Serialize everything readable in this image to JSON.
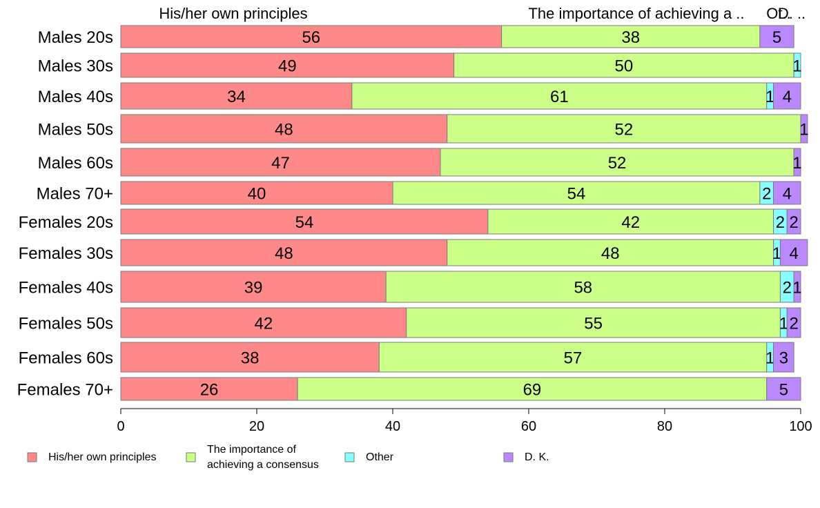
{
  "chart_data": {
    "type": "bar",
    "orientation": "horizontal",
    "stacked": true,
    "categories": [
      "Males 20s",
      "Males 30s",
      "Males 40s",
      "Males 50s",
      "Males 60s",
      "Males 70+",
      "Females 20s",
      "Females 30s",
      "Females 40s",
      "Females 50s",
      "Females 60s",
      "Females 70+"
    ],
    "series": [
      {
        "name": "His/her own principles",
        "color": "#ff8888",
        "values": [
          56,
          49,
          34,
          48,
          47,
          40,
          54,
          48,
          39,
          42,
          38,
          26
        ]
      },
      {
        "name": "The importance of achieving a consensus",
        "color": "#ccff88",
        "values": [
          38,
          50,
          61,
          52,
          52,
          54,
          42,
          48,
          58,
          55,
          57,
          69
        ]
      },
      {
        "name": "Other",
        "color": "#88ffff",
        "values": [
          0,
          1,
          1,
          0,
          0,
          2,
          2,
          1,
          2,
          1,
          1,
          0
        ]
      },
      {
        "name": "D. K.",
        "color": "#bb88ff",
        "values": [
          5,
          0,
          4,
          1,
          1,
          4,
          2,
          4,
          1,
          2,
          3,
          5
        ]
      }
    ],
    "top_labels": [
      "His/her own principles",
      "The importance of achieving a ..",
      "Ot..",
      "D. .."
    ],
    "legend_labels": [
      "His/her own principles",
      "The importance of\nachieving a consensus",
      "Other",
      "D. K."
    ],
    "xlim": [
      0,
      100
    ],
    "xticks": [
      0,
      20,
      40,
      60,
      80,
      100
    ],
    "legend_position": "bottom",
    "grid": false
  }
}
